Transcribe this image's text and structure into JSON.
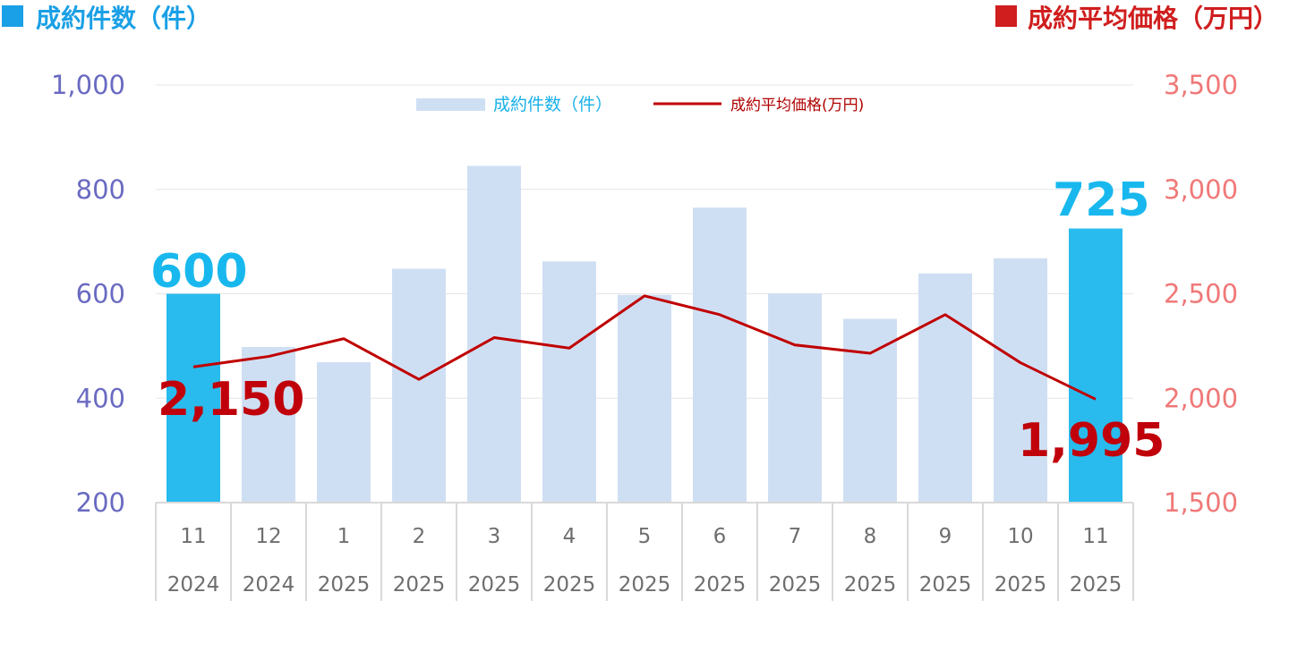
{
  "header": {
    "left_title": "成約件数（件）",
    "right_title": "成約平均価格（万円）",
    "left_color": "#1a9fe3",
    "right_color": "#d01e1e"
  },
  "chart_data": {
    "type": "bar",
    "categories": [
      {
        "month": "11",
        "year": "2024"
      },
      {
        "month": "12",
        "year": "2024"
      },
      {
        "month": "1",
        "year": "2025"
      },
      {
        "month": "2",
        "year": "2025"
      },
      {
        "month": "3",
        "year": "2025"
      },
      {
        "month": "4",
        "year": "2025"
      },
      {
        "month": "5",
        "year": "2025"
      },
      {
        "month": "6",
        "year": "2025"
      },
      {
        "month": "7",
        "year": "2025"
      },
      {
        "month": "8",
        "year": "2025"
      },
      {
        "month": "9",
        "year": "2025"
      },
      {
        "month": "10",
        "year": "2025"
      },
      {
        "month": "11",
        "year": "2025"
      }
    ],
    "series": [
      {
        "name": "成約件数（件）",
        "type": "bar",
        "axis": "left",
        "color": "#cfdff3",
        "highlight_color": "#29bbee",
        "highlight_indices": [
          0,
          12
        ],
        "values": [
          600,
          498,
          469,
          648,
          845,
          662,
          598,
          765,
          601,
          552,
          639,
          668,
          725
        ]
      },
      {
        "name": "成約平均価格(万円)",
        "type": "line",
        "axis": "right",
        "color": "#c00000",
        "values": [
          2150,
          2200,
          2285,
          2090,
          2290,
          2240,
          2490,
          2400,
          2255,
          2215,
          2400,
          2170,
          1995
        ]
      }
    ],
    "y_left": {
      "min": 200,
      "max": 1000,
      "ticks": [
        "1,000",
        "800",
        "600",
        "400",
        "200"
      ],
      "tick_values": [
        1000,
        800,
        600,
        400,
        200
      ]
    },
    "y_right": {
      "min": 1500,
      "max": 3500,
      "ticks": [
        "3,500",
        "3,000",
        "2,500",
        "2,000",
        "1,500"
      ],
      "tick_values": [
        3500,
        3000,
        2500,
        2000,
        1500
      ]
    },
    "callouts": {
      "bar_first": "600",
      "bar_last": "725",
      "line_first": "2,150",
      "line_last": "1,995"
    },
    "legend": {
      "placement": "top-center"
    },
    "grid": true
  }
}
